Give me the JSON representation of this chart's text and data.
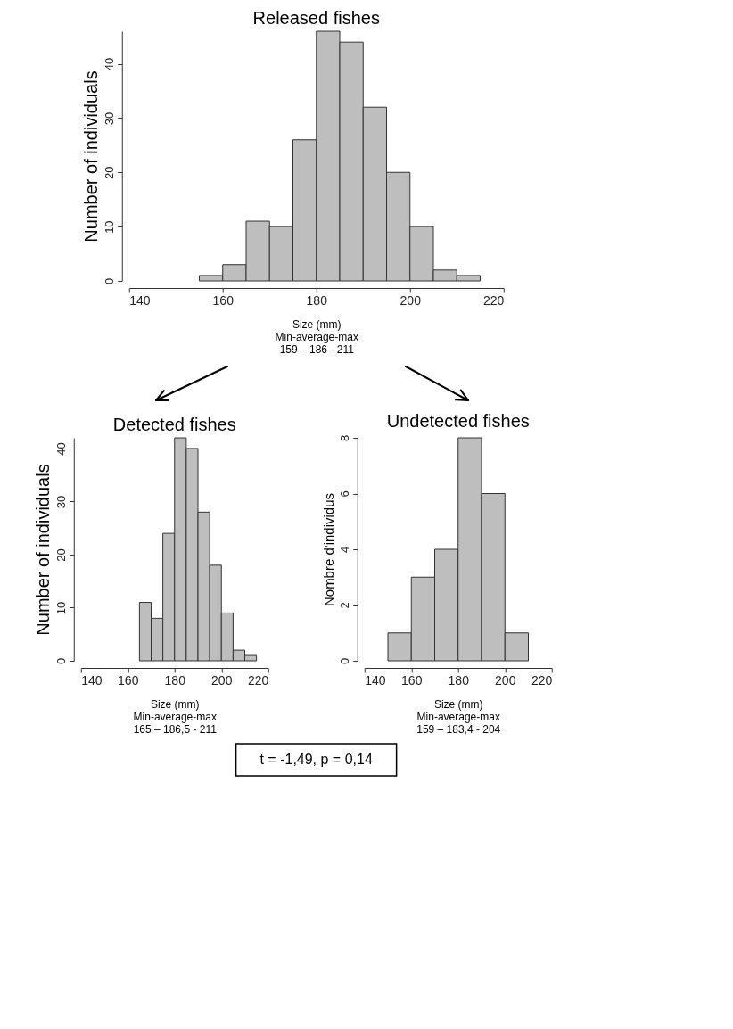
{
  "chart_data": [
    {
      "type": "histogram",
      "title": "Released fishes",
      "xlabel": "Size (mm)",
      "ylabel": "Number of individuals",
      "annotations": [
        "Min-average-max",
        "159 – 186 - 211"
      ],
      "color": "#bebebe",
      "bins": [
        155,
        160,
        165,
        170,
        175,
        180,
        185,
        190,
        195,
        200,
        205,
        210,
        215
      ],
      "values": [
        1,
        3,
        11,
        10,
        26,
        46,
        44,
        32,
        20,
        10,
        2,
        1
      ],
      "xlim": [
        140,
        220
      ],
      "xticks": [
        140,
        160,
        180,
        200,
        220
      ],
      "ylim": [
        0,
        46
      ],
      "yticks": [
        0,
        10,
        20,
        30,
        40
      ],
      "grid": false
    },
    {
      "type": "histogram",
      "title": "Detected fishes",
      "xlabel": "Size (mm)",
      "ylabel": "Number of individuals",
      "annotations": [
        "Min-average-max",
        "165 – 186,5 - 211"
      ],
      "color": "#bebebe",
      "bins": [
        165,
        170,
        175,
        180,
        185,
        190,
        195,
        200,
        205,
        210,
        215
      ],
      "values": [
        11,
        8,
        24,
        42,
        40,
        28,
        18,
        9,
        2,
        1
      ],
      "xlim": [
        140,
        220
      ],
      "xticks": [
        140,
        160,
        180,
        200,
        220
      ],
      "ylim": [
        0,
        42
      ],
      "yticks": [
        0,
        10,
        20,
        30,
        40
      ],
      "grid": false
    },
    {
      "type": "histogram",
      "title": "Undetected  fishes",
      "xlabel": "Size (mm)",
      "ylabel": "Nombre d'individus",
      "annotations": [
        "Min-average-max",
        "159 – 183,4 - 204"
      ],
      "color": "#bebebe",
      "bins": [
        150,
        160,
        170,
        180,
        190,
        200,
        210
      ],
      "values": [
        1,
        3,
        4,
        8,
        6,
        1
      ],
      "xlim": [
        140,
        220
      ],
      "xticks": [
        140,
        160,
        180,
        200,
        220
      ],
      "ylim": [
        0,
        8
      ],
      "yticks": [
        0,
        2,
        4,
        6,
        8
      ],
      "grid": false
    },
    {
      "type": "other",
      "annotations": [
        "t = -1,49, p = 0,14"
      ]
    }
  ]
}
